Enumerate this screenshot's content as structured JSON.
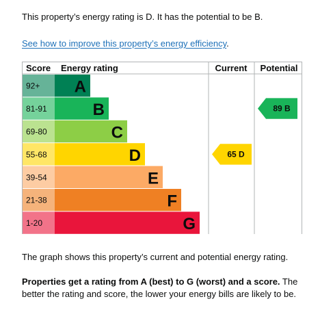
{
  "intro_text": "This property’s energy rating is D. It has the potential to be B.",
  "improve_link": "See how to improve this property’s energy efficiency",
  "improve_link_end": ".",
  "chart_data": {
    "type": "bar",
    "headers": {
      "score": "Score",
      "rating": "Energy rating",
      "current": "Current",
      "potential": "Potential"
    },
    "bands": [
      {
        "letter": "A",
        "range": "92+",
        "color": "#008054"
      },
      {
        "letter": "B",
        "range": "81-91",
        "color": "#19b459"
      },
      {
        "letter": "C",
        "range": "69-80",
        "color": "#8dce46"
      },
      {
        "letter": "D",
        "range": "55-68",
        "color": "#ffd500"
      },
      {
        "letter": "E",
        "range": "39-54",
        "color": "#fcaa65"
      },
      {
        "letter": "F",
        "range": "21-38",
        "color": "#ef8023"
      },
      {
        "letter": "G",
        "range": "1-20",
        "color": "#e9153b"
      }
    ],
    "current": {
      "score": 65,
      "letter": "D",
      "label": "65 D",
      "color": "#ffd500",
      "text_color": "#0b0c0c"
    },
    "potential": {
      "score": 89,
      "letter": "B",
      "label": "89 B",
      "color": "#19b459",
      "text_color": "#0b0c0c"
    }
  },
  "graph_note": "The graph shows this property’s current and potential energy rating.",
  "explain_bold": "Properties get a rating from A (best) to G (worst) and a score.",
  "explain_rest": " The better the rating and score, the lower your energy bills are likely to be."
}
